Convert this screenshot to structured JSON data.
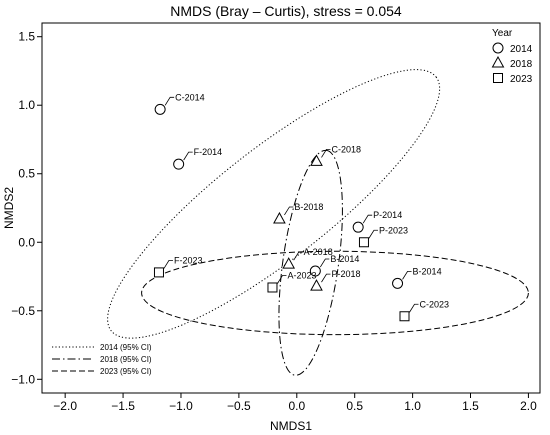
{
  "chart_data": {
    "type": "scatter",
    "title": "NMDS (Bray – Curtis), stress = 0.054",
    "xlabel": "NMDS1",
    "ylabel": "NMDS2",
    "xlim": [
      -2.2,
      2.1
    ],
    "ylim": [
      -1.1,
      1.6
    ],
    "xticks": [
      "−2.0",
      "−1.5",
      "−1.0",
      "−0.5",
      "0.0",
      "0.5",
      "1.0",
      "1.5",
      "2.0"
    ],
    "yticks": [
      "−1.0",
      "−0.5",
      "0.0",
      "0.5",
      "1.0",
      "1.5"
    ],
    "xtick_values": [
      -2.0,
      -1.5,
      -1.0,
      -0.5,
      0.0,
      0.5,
      1.0,
      1.5,
      2.0
    ],
    "ytick_values": [
      -1.0,
      -0.5,
      0.0,
      0.5,
      1.0,
      1.5
    ],
    "grid": false,
    "shape_legend": {
      "title": "Year",
      "placement": "top-right",
      "entries": [
        {
          "label": "2014",
          "marker": "circle"
        },
        {
          "label": "2018",
          "marker": "triangle"
        },
        {
          "label": "2023",
          "marker": "square"
        }
      ]
    },
    "line_legend": {
      "placement": "bottom-left",
      "entries": [
        {
          "label": "2014 (95% CI)",
          "dash": "dotted"
        },
        {
          "label": "2018 (95% CI)",
          "dash": "dashdot"
        },
        {
          "label": "2023 (95% CI)",
          "dash": "dashed"
        }
      ]
    },
    "series": [
      {
        "name": "2014",
        "marker": "circle",
        "points": [
          {
            "label": "C-2014",
            "x": -1.18,
            "y": 0.97
          },
          {
            "label": "F-2014",
            "x": -1.02,
            "y": 0.57
          },
          {
            "label": "P-2014",
            "x": 0.53,
            "y": 0.11
          },
          {
            "label": "B-2014",
            "x": 0.16,
            "y": -0.21
          },
          {
            "label": "B-2014",
            "x": 0.87,
            "y": -0.3
          }
        ]
      },
      {
        "name": "2018",
        "marker": "triangle",
        "points": [
          {
            "label": "C-2018",
            "x": 0.17,
            "y": 0.59
          },
          {
            "label": "B-2018",
            "x": -0.15,
            "y": 0.17
          },
          {
            "label": "A-2018",
            "x": -0.07,
            "y": -0.16
          },
          {
            "label": "P-2018",
            "x": 0.17,
            "y": -0.32
          }
        ]
      },
      {
        "name": "2023",
        "marker": "square",
        "points": [
          {
            "label": "P-2023",
            "x": 0.58,
            "y": 0.0
          },
          {
            "label": "F-2023",
            "x": -1.19,
            "y": -0.22
          },
          {
            "label": "A-2023",
            "x": -0.21,
            "y": -0.33
          },
          {
            "label": "C-2023",
            "x": 0.93,
            "y": -0.54
          }
        ]
      }
    ],
    "ellipses": [
      {
        "name": "2014 (95% CI)",
        "dash": "dotted",
        "cx": -0.2,
        "cy": 0.28,
        "rx": 1.78,
        "ry": 0.48,
        "angle_deg": -38
      },
      {
        "name": "2018 (95% CI)",
        "dash": "dashdot",
        "cx": 0.12,
        "cy": -0.15,
        "rx": 0.98,
        "ry": 0.24,
        "angle_deg": -82
      },
      {
        "name": "2023 (95% CI)",
        "dash": "dashed",
        "cx": 0.33,
        "cy": -0.37,
        "rx": 1.67,
        "ry": 0.36,
        "angle_deg": 0
      }
    ]
  }
}
